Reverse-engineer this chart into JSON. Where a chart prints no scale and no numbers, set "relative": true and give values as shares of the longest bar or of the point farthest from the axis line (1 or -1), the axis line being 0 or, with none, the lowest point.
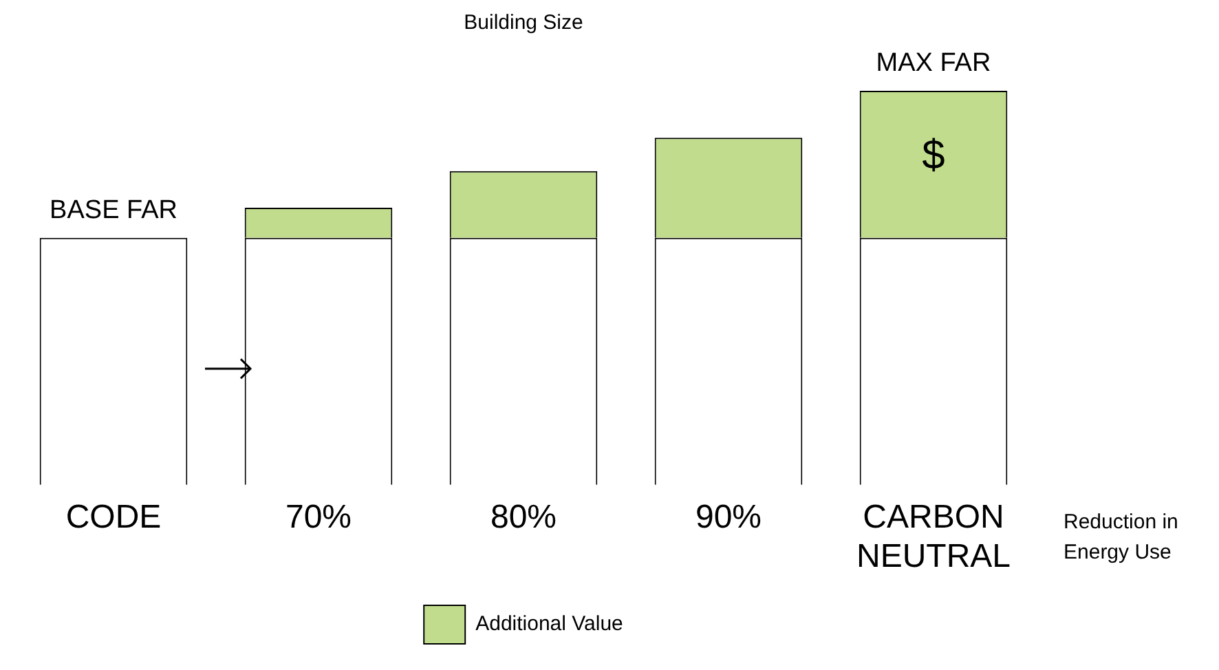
{
  "chart_data": {
    "type": "bar",
    "title": "Building Size",
    "xlabel": "Reduction in Energy Use",
    "relative": true,
    "stacked": true,
    "categories": [
      "CODE",
      "70%",
      "80%",
      "90%",
      "CARBON NEUTRAL"
    ],
    "series": [
      {
        "color": "#ffffff",
        "values": [
          0.627,
          0.627,
          0.627,
          0.627,
          0.627
        ]
      },
      {
        "name": "Additional Value",
        "color": "#c0dc8c",
        "values": [
          null,
          0.076,
          0.169,
          0.254,
          0.373
        ]
      }
    ],
    "annotations": [
      {
        "text": "BASE FAR",
        "x": "CODE",
        "y": 0.627
      },
      {
        "text": "MAX FAR",
        "x": "CARBON NEUTRAL",
        "y": 1
      },
      "$"
    ],
    "legend": "bottom",
    "grid": false
  }
}
